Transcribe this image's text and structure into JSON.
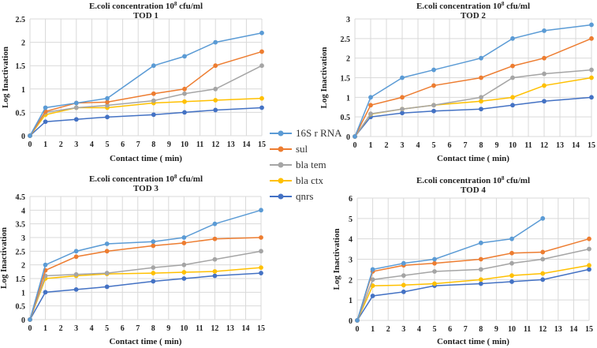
{
  "legend": {
    "placement": "center-right",
    "entries": [
      {
        "name": "16S r RNA",
        "color": "#5B9BD5"
      },
      {
        "name": "sul",
        "color": "#ED7D31"
      },
      {
        "name": "bla tem",
        "color": "#A5A5A5"
      },
      {
        "name": "bla ctx",
        "color": "#FFC000"
      },
      {
        "name": "qnrs",
        "color": "#4472C4"
      }
    ]
  },
  "chart_data": [
    {
      "type": "line",
      "title": "E.coli concentration 10",
      "title_sup": "8",
      "title_suffix": " cfu/ml",
      "subtitle": "TOD 1",
      "xlabel": "Contact time ( min)",
      "ylabel": "Log Inactivation",
      "xlim": [
        0,
        15
      ],
      "ylim": [
        0,
        2.5
      ],
      "xticks": [
        "0",
        "1",
        "2",
        "3",
        "4",
        "5",
        "6",
        "7",
        "8",
        "9",
        "10",
        "11",
        "12",
        "13",
        "14",
        "15"
      ],
      "yticks": [
        "0",
        "0.5",
        "1",
        "1.5",
        "2",
        "2.5"
      ],
      "ytick_values": [
        0,
        0.5,
        1,
        1.5,
        2,
        2.5
      ],
      "grid": true,
      "x": [
        0,
        1,
        3,
        5,
        8,
        10,
        12,
        15
      ],
      "series": [
        {
          "name": "16S r RNA",
          "values": [
            0,
            0.6,
            0.7,
            0.8,
            1.5,
            1.7,
            2.0,
            2.2
          ]
        },
        {
          "name": "sul",
          "values": [
            0,
            0.52,
            0.7,
            0.72,
            0.9,
            1.0,
            1.5,
            1.8
          ]
        },
        {
          "name": "bla tem",
          "values": [
            0,
            0.5,
            0.6,
            0.65,
            0.75,
            0.9,
            1.0,
            1.5
          ]
        },
        {
          "name": "bla ctx",
          "values": [
            0,
            0.45,
            0.6,
            0.6,
            0.7,
            0.73,
            0.76,
            0.8
          ]
        },
        {
          "name": "qnrs",
          "values": [
            0,
            0.3,
            0.35,
            0.4,
            0.45,
            0.5,
            0.55,
            0.6
          ]
        }
      ]
    },
    {
      "type": "line",
      "title": "E.coli concentration 10",
      "title_sup": "8",
      "title_suffix": " cfu/ml",
      "subtitle": "TOD 2",
      "xlabel": "Contact time ( min)",
      "ylabel": "Log Inactivation",
      "xlim": [
        0,
        15
      ],
      "ylim": [
        0,
        3
      ],
      "xticks": [
        "0",
        "1",
        "2",
        "3",
        "4",
        "5",
        "6",
        "7",
        "8",
        "9",
        "10",
        "11",
        "12",
        "13",
        "14",
        "15"
      ],
      "yticks": [
        "0",
        "0.5",
        "1",
        "1.5",
        "2",
        "2.5",
        "3"
      ],
      "ytick_values": [
        0,
        0.5,
        1,
        1.5,
        2,
        2.5,
        3
      ],
      "grid": true,
      "x": [
        0,
        1,
        3,
        5,
        8,
        10,
        12,
        15
      ],
      "series": [
        {
          "name": "16S r RNA",
          "values": [
            0,
            1.0,
            1.5,
            1.7,
            2.0,
            2.5,
            2.7,
            2.85
          ]
        },
        {
          "name": "sul",
          "values": [
            0,
            0.8,
            1.0,
            1.3,
            1.5,
            1.8,
            2.0,
            2.5
          ]
        },
        {
          "name": "bla tem",
          "values": [
            0,
            0.58,
            0.7,
            0.8,
            1.0,
            1.5,
            1.6,
            1.7
          ]
        },
        {
          "name": "bla ctx",
          "values": [
            0,
            0.57,
            0.7,
            0.8,
            0.9,
            1.0,
            1.3,
            1.5
          ]
        },
        {
          "name": "qnrs",
          "values": [
            0,
            0.5,
            0.6,
            0.65,
            0.7,
            0.8,
            0.9,
            1.0
          ]
        }
      ]
    },
    {
      "type": "line",
      "title": "E.coli concentration 10",
      "title_sup": "8",
      "title_suffix": " cfu/ml",
      "subtitle": "TOD 3",
      "xlabel": "Contact time ( min)",
      "ylabel": "Log Inactivation",
      "xlim": [
        0,
        15
      ],
      "ylim": [
        0,
        4.5
      ],
      "xticks": [
        "0",
        "1",
        "2",
        "3",
        "4",
        "5",
        "6",
        "7",
        "8",
        "9",
        "10",
        "11",
        "12",
        "13",
        "14",
        "15"
      ],
      "yticks": [
        "0",
        "0.5",
        "1",
        "1.5",
        "2",
        "2.5",
        "3",
        "3.5",
        "4",
        "4.5"
      ],
      "ytick_values": [
        0,
        0.5,
        1,
        1.5,
        2,
        2.5,
        3,
        3.5,
        4,
        4.5
      ],
      "grid": true,
      "x": [
        0,
        1,
        3,
        5,
        8,
        10,
        12,
        15
      ],
      "series": [
        {
          "name": "16S r RNA",
          "values": [
            0,
            2.0,
            2.5,
            2.77,
            2.85,
            3.0,
            3.5,
            4.0
          ]
        },
        {
          "name": "sul",
          "values": [
            0,
            1.8,
            2.3,
            2.5,
            2.7,
            2.8,
            2.95,
            3.0
          ]
        },
        {
          "name": "bla tem",
          "values": [
            0,
            1.6,
            1.65,
            1.7,
            1.9,
            2.0,
            2.2,
            2.5
          ]
        },
        {
          "name": "bla ctx",
          "values": [
            0,
            1.5,
            1.6,
            1.67,
            1.7,
            1.73,
            1.76,
            1.9
          ]
        },
        {
          "name": "qnrs",
          "values": [
            0,
            1.0,
            1.1,
            1.2,
            1.4,
            1.5,
            1.6,
            1.7
          ]
        }
      ]
    },
    {
      "type": "line",
      "title": "E.coli concentration 10",
      "title_sup": "8",
      "title_suffix": " cfu/ml",
      "subtitle": "TOD 4",
      "xlabel": "Contact time ( min)",
      "ylabel": "Log Inactivation",
      "xlim": [
        0,
        15
      ],
      "ylim": [
        0,
        6
      ],
      "xticks": [
        "0",
        "1",
        "2",
        "3",
        "4",
        "5",
        "6",
        "7",
        "8",
        "9",
        "10",
        "11",
        "12",
        "13",
        "14",
        "15"
      ],
      "yticks": [
        "0",
        "1",
        "2",
        "3",
        "4",
        "5",
        "6"
      ],
      "ytick_values": [
        0,
        1,
        2,
        3,
        4,
        5,
        6
      ],
      "grid": true,
      "x": [
        0,
        1,
        3,
        5,
        8,
        10,
        12,
        15
      ],
      "series": [
        {
          "name": "16S r RNA",
          "values": [
            0,
            2.5,
            2.8,
            3.0,
            3.8,
            4.0,
            5.0,
            null
          ]
        },
        {
          "name": "sul",
          "values": [
            0,
            2.4,
            2.7,
            2.8,
            3.0,
            3.3,
            3.35,
            4.0
          ]
        },
        {
          "name": "bla tem",
          "values": [
            0,
            2.0,
            2.2,
            2.4,
            2.5,
            2.8,
            3.0,
            3.5
          ]
        },
        {
          "name": "bla ctx",
          "values": [
            0,
            1.7,
            1.73,
            1.8,
            2.0,
            2.2,
            2.3,
            2.7
          ]
        },
        {
          "name": "qnrs",
          "values": [
            0,
            1.2,
            1.4,
            1.7,
            1.8,
            1.9,
            2.0,
            2.5
          ]
        }
      ]
    }
  ]
}
